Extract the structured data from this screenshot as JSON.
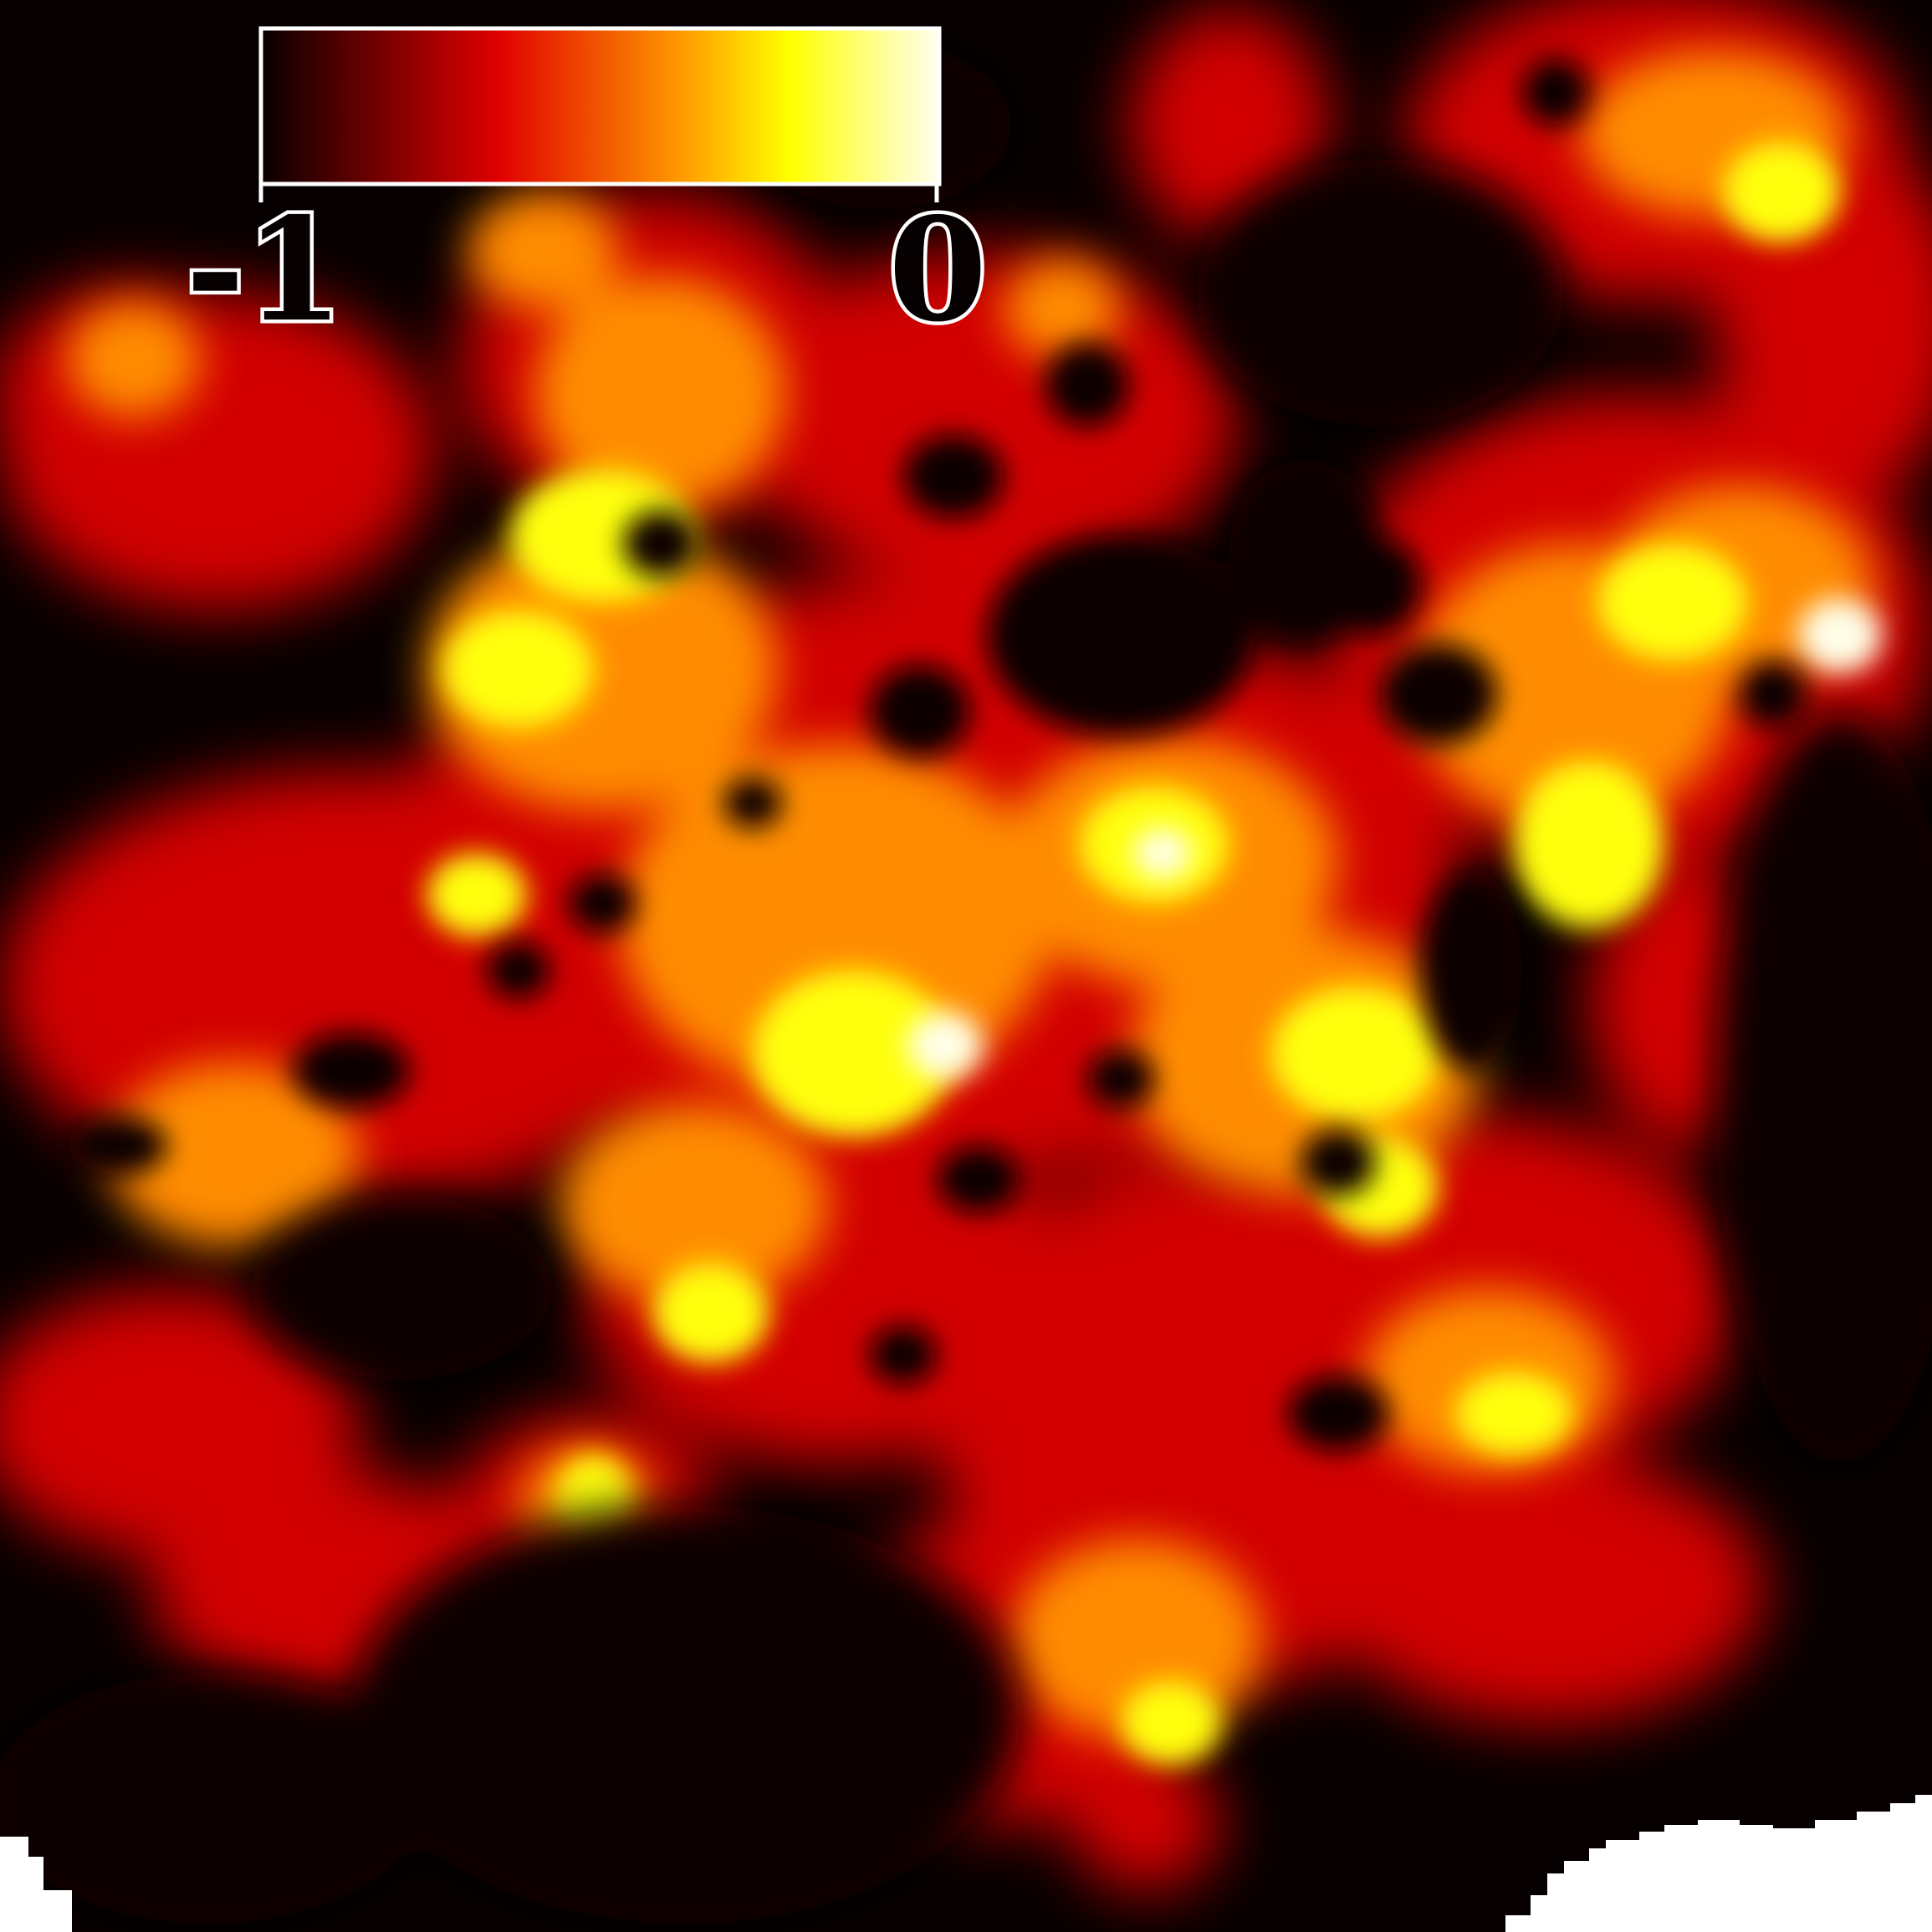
{
  "colorbar": {
    "min_label": "-1",
    "max_label": "0",
    "colormap": "hot",
    "stops": [
      "#080000",
      "#e00000",
      "#ff9a00",
      "#ffff00",
      "#fffef0"
    ]
  },
  "colors": {
    "background": "#070000",
    "frame": "#ffffff"
  }
}
